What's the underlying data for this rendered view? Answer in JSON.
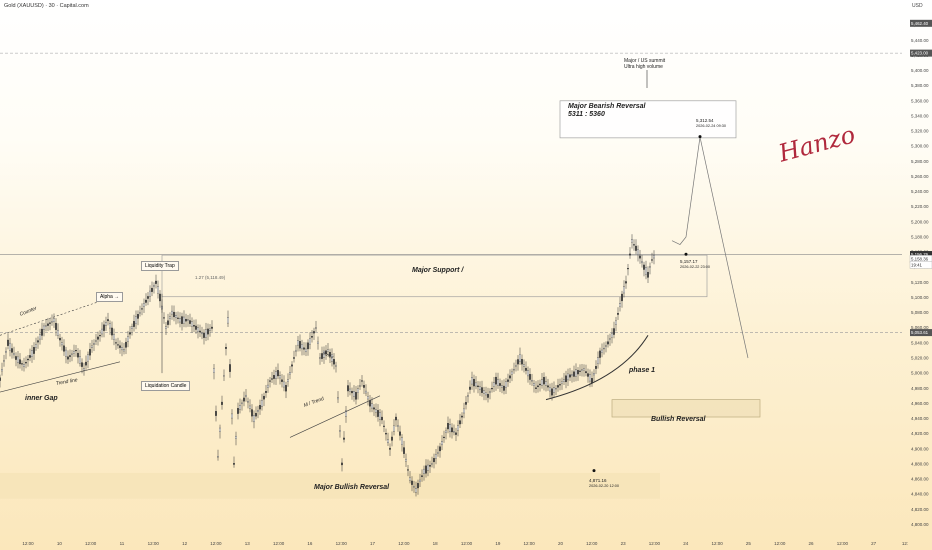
{
  "header": {
    "title": "Gold (XAUUSD) · 30 · Capital.com"
  },
  "scale_label": "USD",
  "signature": "Hanzo",
  "annotations": {
    "major_reversal_note": "Major / US summit\nUltra high volume",
    "major_bearish_title": "Major Bearish Reversal",
    "major_bearish_range": "5311  : 5360",
    "target_high_value": "5,312.54",
    "target_high_date": "2026-02-24 09:30",
    "target_low_value": "5,157.17",
    "target_low_date": "2026-02-22 23:00",
    "major_support": "Major Support /",
    "phase_label": "phase 1",
    "bullish_reversal": "Bullish Reversal",
    "major_bullish_reversal": "Major Bullish Reversal",
    "low_value": "4,871.16",
    "low_date": "2026-02-20 12:00",
    "liquidity_trap": "Liquidity Trap",
    "liquidation_candle": "Liquidation Candle",
    "alpha": "Alpha →",
    "counter": "Counter",
    "trend_line": "Trend line",
    "inner_gap": "inner Gap",
    "m_trend": "M / Trend",
    "inner": "inner",
    "fib_127": "1.27 (5,118.49)"
  },
  "chart_data": {
    "type": "candlestick",
    "title": "Gold (XAUUSD) · 30 · Capital.com",
    "ylabel": "USD",
    "ylim": [
      4790,
      5480
    ],
    "y_ticks": [
      5460,
      5440,
      5420,
      5400,
      5380,
      5360,
      5340,
      5320,
      5300,
      5280,
      5260,
      5240,
      5220,
      5200,
      5180,
      5160,
      5140,
      5120,
      5100,
      5080,
      5060,
      5040,
      5020,
      5000,
      4980,
      4960,
      4940,
      4920,
      4900,
      4880,
      4860,
      4840,
      4820,
      4800
    ],
    "y_tick_labels": [
      "5,460.00",
      "5,440.00",
      "5,420.00",
      "5,400.00",
      "5,380.00",
      "5,360.00",
      "5,340.00",
      "5,320.00",
      "5,300.00",
      "5,280.00",
      "5,260.00",
      "5,240.00",
      "5,220.00",
      "5,200.00",
      "5,180.00",
      "5,160.00",
      "5,140.00",
      "5,120.00",
      "5,100.00",
      "5,080.00",
      "5,060.00",
      "5,040.00",
      "5,020.00",
      "5,000.00",
      "4,980.00",
      "4,960.00",
      "4,940.00",
      "4,920.00",
      "4,900.00",
      "4,880.00",
      "4,860.00",
      "4,840.00",
      "4,820.00",
      "4,800.00"
    ],
    "x_tick_labels": [
      "12:00",
      "10",
      "12:00",
      "11",
      "12:00",
      "12",
      "12:00",
      "13",
      "12:00",
      "16",
      "12:00",
      "17",
      "12:00",
      "18",
      "12:00",
      "19",
      "12:00",
      "20",
      "12:00",
      "23",
      "12:00",
      "24",
      "12:00",
      "25",
      "12:00",
      "26",
      "12:00",
      "27",
      "12:"
    ],
    "price_badges": [
      {
        "label": "5,462.40",
        "value": 5462.4,
        "color": "#555555"
      },
      {
        "label": "5,423.00",
        "value": 5423,
        "color": "#555555"
      },
      {
        "label": "5,156.76",
        "value": 5156.76,
        "color": "#333333"
      },
      {
        "label": "5,158.36",
        "value": 5151,
        "color": "#ffffff"
      },
      {
        "label": "19:41",
        "value": 5143,
        "color": "#ffffff"
      },
      {
        "label": "5,053.61",
        "value": 5053.6,
        "color": "#555555"
      }
    ],
    "key_levels": [
      {
        "name": "current",
        "value": 5156.76,
        "style": "solid"
      },
      {
        "name": "support-dashed",
        "value": 5053.6,
        "style": "dashed"
      },
      {
        "name": "top-dashed",
        "value": 5423,
        "style": "dashed"
      }
    ],
    "zones": [
      {
        "name": "Major Bearish Reversal",
        "y_range": [
          5311,
          5360
        ]
      },
      {
        "name": "Major Support",
        "y_range": [
          5101,
          5156
        ]
      },
      {
        "name": "Bullish Reversal",
        "y_range": [
          4942,
          4965
        ]
      },
      {
        "name": "Major Bullish Reversal",
        "y_range": [
          4834,
          4868
        ]
      }
    ],
    "price_path": [
      [
        0,
        4992
      ],
      [
        8,
        5040
      ],
      [
        16,
        5020
      ],
      [
        24,
        5010
      ],
      [
        34,
        5030
      ],
      [
        44,
        5060
      ],
      [
        54,
        5070
      ],
      [
        60,
        5045
      ],
      [
        68,
        5020
      ],
      [
        76,
        5030
      ],
      [
        84,
        5005
      ],
      [
        92,
        5035
      ],
      [
        100,
        5050
      ],
      [
        108,
        5070
      ],
      [
        116,
        5040
      ],
      [
        124,
        5030
      ],
      [
        132,
        5060
      ],
      [
        140,
        5080
      ],
      [
        148,
        5100
      ],
      [
        156,
        5120
      ],
      [
        160,
        5100
      ],
      [
        166,
        5060
      ],
      [
        172,
        5080
      ],
      [
        180,
        5070
      ],
      [
        188,
        5070
      ],
      [
        196,
        5060
      ],
      [
        204,
        5050
      ],
      [
        212,
        5060
      ],
      [
        218,
        4890
      ],
      [
        222,
        4960
      ],
      [
        228,
        5070
      ],
      [
        234,
        4880
      ],
      [
        238,
        4950
      ],
      [
        246,
        4970
      ],
      [
        254,
        4940
      ],
      [
        262,
        4960
      ],
      [
        270,
        4990
      ],
      [
        278,
        5000
      ],
      [
        286,
        4980
      ],
      [
        292,
        5010
      ],
      [
        298,
        5040
      ],
      [
        306,
        5030
      ],
      [
        316,
        5060
      ],
      [
        320,
        5020
      ],
      [
        328,
        5030
      ],
      [
        336,
        5010
      ],
      [
        342,
        4880
      ],
      [
        348,
        4980
      ],
      [
        356,
        4970
      ],
      [
        362,
        4990
      ],
      [
        370,
        4960
      ],
      [
        376,
        4950
      ],
      [
        382,
        4940
      ],
      [
        390,
        4900
      ],
      [
        396,
        4940
      ],
      [
        402,
        4910
      ],
      [
        410,
        4860
      ],
      [
        416,
        4845
      ],
      [
        424,
        4870
      ],
      [
        432,
        4880
      ],
      [
        440,
        4900
      ],
      [
        448,
        4930
      ],
      [
        456,
        4920
      ],
      [
        464,
        4950
      ],
      [
        472,
        4990
      ],
      [
        480,
        4980
      ],
      [
        488,
        4970
      ],
      [
        496,
        4990
      ],
      [
        504,
        4980
      ],
      [
        512,
        5000
      ],
      [
        520,
        5020
      ],
      [
        528,
        5000
      ],
      [
        536,
        4980
      ],
      [
        544,
        4990
      ],
      [
        552,
        4975
      ],
      [
        560,
        4985
      ],
      [
        568,
        4995
      ],
      [
        576,
        5000
      ],
      [
        584,
        5005
      ],
      [
        592,
        4990
      ],
      [
        600,
        5025
      ],
      [
        608,
        5040
      ],
      [
        614,
        5055
      ],
      [
        620,
        5090
      ],
      [
        626,
        5120
      ],
      [
        632,
        5175
      ],
      [
        638,
        5160
      ],
      [
        644,
        5140
      ],
      [
        648,
        5130
      ],
      [
        652,
        5150
      ],
      [
        656,
        5158
      ]
    ],
    "projection_path": [
      [
        672,
        5175
      ],
      [
        680,
        5170
      ],
      [
        686,
        5180
      ],
      [
        700,
        5312
      ],
      [
        748,
        5020
      ]
    ],
    "marked_points": [
      {
        "label": "5,312.54",
        "x_index": 700,
        "value": 5312.54
      },
      {
        "label": "5,157.17",
        "x_index": 686,
        "value": 5157.17
      },
      {
        "label": "4,871.16",
        "x_index": 594,
        "value": 4871.16
      }
    ],
    "grid": false,
    "legend": "none"
  }
}
